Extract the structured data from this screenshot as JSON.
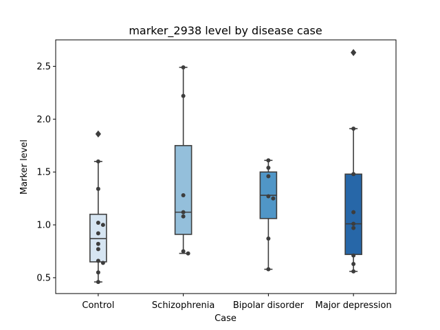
{
  "chart_data": {
    "type": "box",
    "title": "marker_2938 level by disease case",
    "xlabel": "Case",
    "ylabel": "Marker level",
    "ylim": [
      0.35,
      2.75
    ],
    "yticks": [
      0.5,
      1.0,
      1.5,
      2.0,
      2.5
    ],
    "ytick_labels": [
      "0.5",
      "1.0",
      "1.5",
      "2.0",
      "2.5"
    ],
    "grid": false,
    "categories": [
      "Control",
      "Schizophrenia",
      "Bipolar disorder",
      "Major depression"
    ],
    "colors": [
      "#d6e5f2",
      "#94bfdb",
      "#5096c7",
      "#2767a8"
    ],
    "edge_color": "#3d3d3d",
    "boxes": [
      {
        "whisker_low": 0.46,
        "q1": 0.65,
        "median": 0.87,
        "q3": 1.1,
        "whisker_high": 1.6,
        "outliers": [
          1.86
        ]
      },
      {
        "whisker_low": 0.73,
        "q1": 0.91,
        "median": 1.12,
        "q3": 1.75,
        "whisker_high": 2.49,
        "outliers": []
      },
      {
        "whisker_low": 0.58,
        "q1": 1.06,
        "median": 1.28,
        "q3": 1.5,
        "whisker_high": 1.61,
        "outliers": []
      },
      {
        "whisker_low": 0.56,
        "q1": 0.72,
        "median": 1.01,
        "q3": 1.48,
        "whisker_high": 1.91,
        "outliers": [
          2.63
        ]
      }
    ],
    "points": [
      [
        1.86,
        1.6,
        1.34,
        1.02,
        1.0,
        0.92,
        0.82,
        0.77,
        0.66,
        0.64,
        0.55,
        0.46
      ],
      [
        2.49,
        2.22,
        1.28,
        1.12,
        1.08,
        0.75,
        0.73
      ],
      [
        1.61,
        1.54,
        1.46,
        1.27,
        1.25,
        0.87,
        0.58
      ],
      [
        2.63,
        1.91,
        1.48,
        1.12,
        1.01,
        0.97,
        0.71,
        0.63,
        0.56
      ]
    ]
  }
}
